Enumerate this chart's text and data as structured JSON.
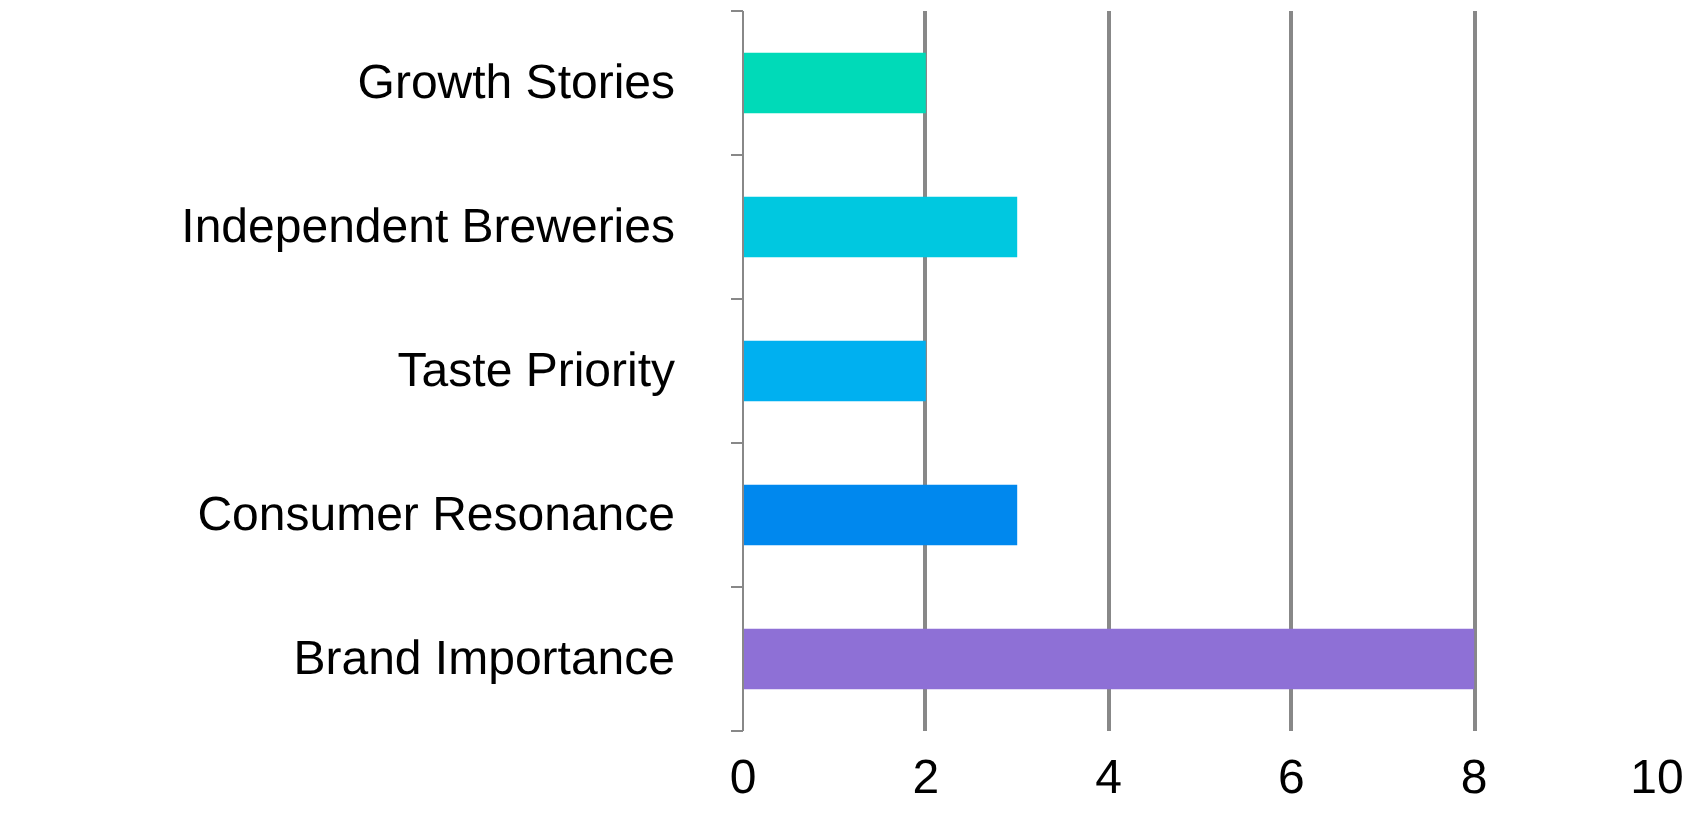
{
  "chart_data": {
    "type": "bar",
    "orientation": "horizontal",
    "categories": [
      "Growth Stories",
      "Independent Breweries",
      "Taste Priority",
      "Consumer Resonance",
      "Brand Importance"
    ],
    "values": [
      2,
      3,
      2,
      3,
      8
    ],
    "colors": [
      "#00dab8",
      "#00c8e0",
      "#00b0f0",
      "#0088ee",
      "#8e70d6"
    ],
    "xlim": [
      0,
      10
    ],
    "xticks": [
      0,
      2,
      4,
      6,
      8,
      10
    ],
    "grid": "x"
  }
}
